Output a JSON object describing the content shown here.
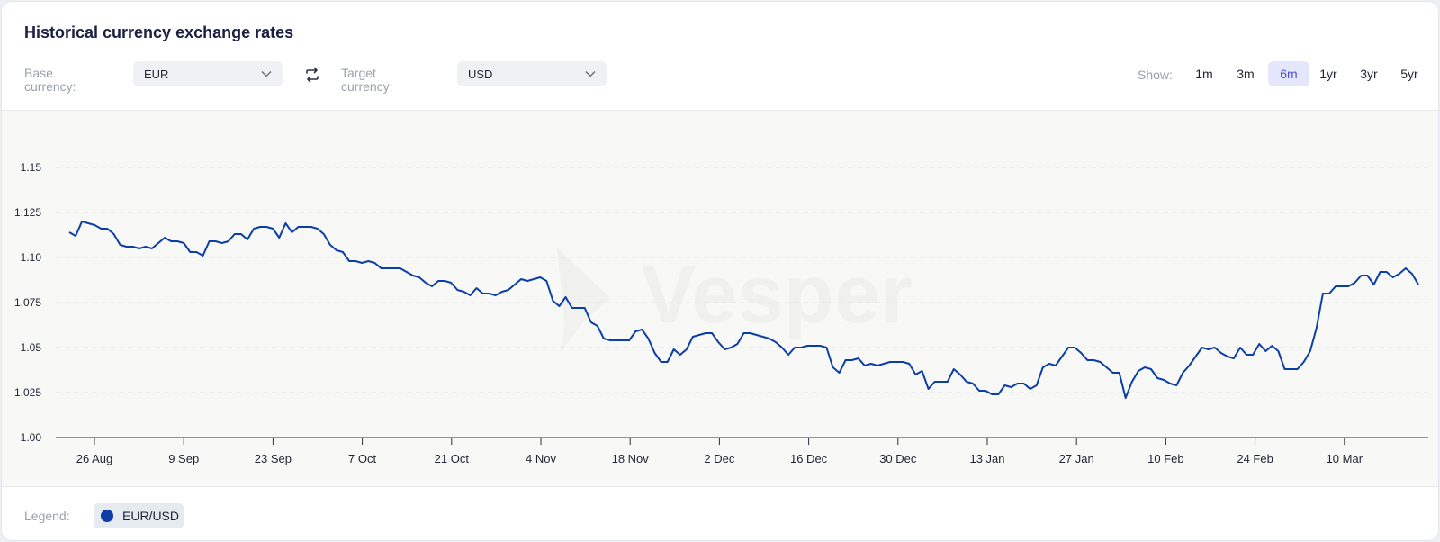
{
  "header": {
    "title": "Historical currency exchange rates"
  },
  "controls": {
    "base_label": "Base\ncurrency:",
    "base_value": "EUR",
    "target_label": "Target\ncurrency:",
    "target_value": "USD",
    "show_label": "Show:",
    "ranges": [
      "1m",
      "3m",
      "6m",
      "1yr",
      "3yr",
      "5yr"
    ],
    "active_range": "6m"
  },
  "watermark": "Vesper",
  "legend": {
    "label": "Legend:",
    "series_name": "EUR/USD"
  },
  "colors": {
    "line": "#0c3ea8",
    "accent": "#4a50d8"
  },
  "chart_data": {
    "type": "line",
    "title": "",
    "xlabel": "",
    "ylabel": "",
    "ylim": [
      1.0,
      1.15
    ],
    "yticks": [
      "1.00",
      "1.025",
      "1.05",
      "1.075",
      "1.10",
      "1.125",
      "1.15"
    ],
    "xticks": [
      "26 Aug",
      "9 Sep",
      "23 Sep",
      "7 Oct",
      "21 Oct",
      "4 Nov",
      "18 Nov",
      "2 Dec",
      "16 Dec",
      "30 Dec",
      "13 Jan",
      "27 Jan",
      "10 Feb",
      "24 Feb",
      "10 Mar"
    ],
    "grid": true,
    "series": [
      {
        "name": "EUR/USD",
        "values": [
          1.114,
          1.112,
          1.12,
          1.119,
          1.118,
          1.116,
          1.116,
          1.113,
          1.107,
          1.106,
          1.106,
          1.105,
          1.106,
          1.105,
          1.108,
          1.111,
          1.109,
          1.109,
          1.108,
          1.103,
          1.103,
          1.101,
          1.109,
          1.109,
          1.108,
          1.109,
          1.113,
          1.113,
          1.11,
          1.116,
          1.117,
          1.117,
          1.116,
          1.111,
          1.119,
          1.114,
          1.117,
          1.117,
          1.117,
          1.116,
          1.113,
          1.107,
          1.104,
          1.103,
          1.098,
          1.098,
          1.097,
          1.098,
          1.097,
          1.094,
          1.094,
          1.094,
          1.094,
          1.092,
          1.09,
          1.089,
          1.086,
          1.084,
          1.087,
          1.087,
          1.086,
          1.082,
          1.081,
          1.079,
          1.083,
          1.08,
          1.08,
          1.079,
          1.081,
          1.082,
          1.085,
          1.088,
          1.087,
          1.088,
          1.089,
          1.087,
          1.076,
          1.073,
          1.078,
          1.072,
          1.072,
          1.072,
          1.064,
          1.062,
          1.055,
          1.054,
          1.054,
          1.054,
          1.054,
          1.059,
          1.06,
          1.055,
          1.047,
          1.042,
          1.042,
          1.049,
          1.046,
          1.049,
          1.056,
          1.057,
          1.058,
          1.058,
          1.053,
          1.049,
          1.05,
          1.052,
          1.058,
          1.058,
          1.057,
          1.056,
          1.055,
          1.053,
          1.05,
          1.046,
          1.05,
          1.05,
          1.051,
          1.051,
          1.051,
          1.05,
          1.039,
          1.036,
          1.043,
          1.043,
          1.044,
          1.04,
          1.041,
          1.04,
          1.041,
          1.042,
          1.042,
          1.042,
          1.041,
          1.035,
          1.037,
          1.027,
          1.031,
          1.031,
          1.031,
          1.038,
          1.035,
          1.031,
          1.03,
          1.026,
          1.026,
          1.024,
          1.024,
          1.029,
          1.028,
          1.03,
          1.03,
          1.027,
          1.029,
          1.039,
          1.041,
          1.04,
          1.045,
          1.05,
          1.05,
          1.047,
          1.043,
          1.043,
          1.042,
          1.039,
          1.036,
          1.036,
          1.022,
          1.031,
          1.037,
          1.039,
          1.038,
          1.033,
          1.032,
          1.03,
          1.029,
          1.036,
          1.04,
          1.045,
          1.05,
          1.049,
          1.05,
          1.047,
          1.045,
          1.044,
          1.05,
          1.046,
          1.046,
          1.052,
          1.048,
          1.051,
          1.048,
          1.038,
          1.038,
          1.038,
          1.042,
          1.048,
          1.061,
          1.08,
          1.08,
          1.084,
          1.084,
          1.084,
          1.086,
          1.09,
          1.09,
          1.085,
          1.092,
          1.092,
          1.089,
          1.091,
          1.094,
          1.091,
          1.085
        ]
      }
    ]
  }
}
